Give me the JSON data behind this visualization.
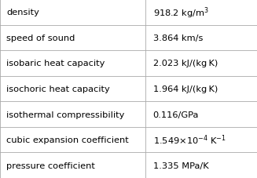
{
  "rows": [
    {
      "label": "density",
      "value": "918.2 kg/m$^3$"
    },
    {
      "label": "speed of sound",
      "value": "3.864 km/s"
    },
    {
      "label": "isobaric heat capacity",
      "value": "2.023 kJ/(kg K)"
    },
    {
      "label": "isochoric heat capacity",
      "value": "1.964 kJ/(kg K)"
    },
    {
      "label": "isothermal compressibility",
      "value": "0.116/GPa"
    },
    {
      "label": "cubic expansion coefficient",
      "value": "1.549×10$^{-4}$ K$^{-1}$"
    },
    {
      "label": "pressure coefficient",
      "value": "1.335 MPa/K"
    }
  ],
  "col_split": 0.565,
  "bg_color": "#ffffff",
  "border_color": "#aaaaaa",
  "text_color": "#000000",
  "label_fontsize": 8.2,
  "value_fontsize": 8.2,
  "fig_width": 3.27,
  "fig_height": 2.28,
  "dpi": 100
}
